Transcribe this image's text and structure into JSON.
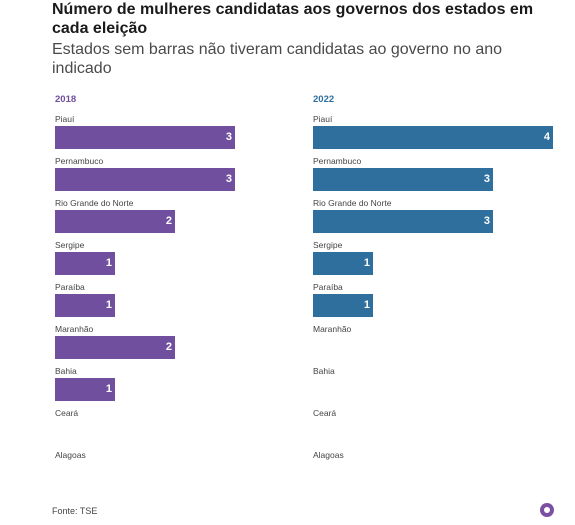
{
  "header": {
    "title": "Número de mulheres candidatas aos governos dos estados em cada eleição",
    "subtitle": "Estados sem barras não tiveram candidatas ao governo no ano indicado"
  },
  "source": "Fonte: TSE",
  "logo_icon": "delta-logo-icon",
  "chart_data": [
    {
      "type": "bar",
      "orientation": "horizontal",
      "title": "2018",
      "color": "#6f4f9e",
      "xlim": [
        0,
        4
      ],
      "categories": [
        "Piauí",
        "Pernambuco",
        "Rio Grande do Norte",
        "Sergipe",
        "Paraíba",
        "Maranhão",
        "Bahia",
        "Ceará",
        "Alagoas"
      ],
      "values": [
        3,
        3,
        2,
        1,
        1,
        2,
        1,
        0,
        0
      ]
    },
    {
      "type": "bar",
      "orientation": "horizontal",
      "title": "2022",
      "color": "#2e6f9e",
      "xlim": [
        0,
        4
      ],
      "categories": [
        "Piauí",
        "Pernambuco",
        "Rio Grande do Norte",
        "Sergipe",
        "Paraíba",
        "Maranhão",
        "Bahia",
        "Ceará",
        "Alagoas"
      ],
      "values": [
        4,
        3,
        3,
        1,
        1,
        0,
        0,
        0,
        0
      ]
    }
  ]
}
